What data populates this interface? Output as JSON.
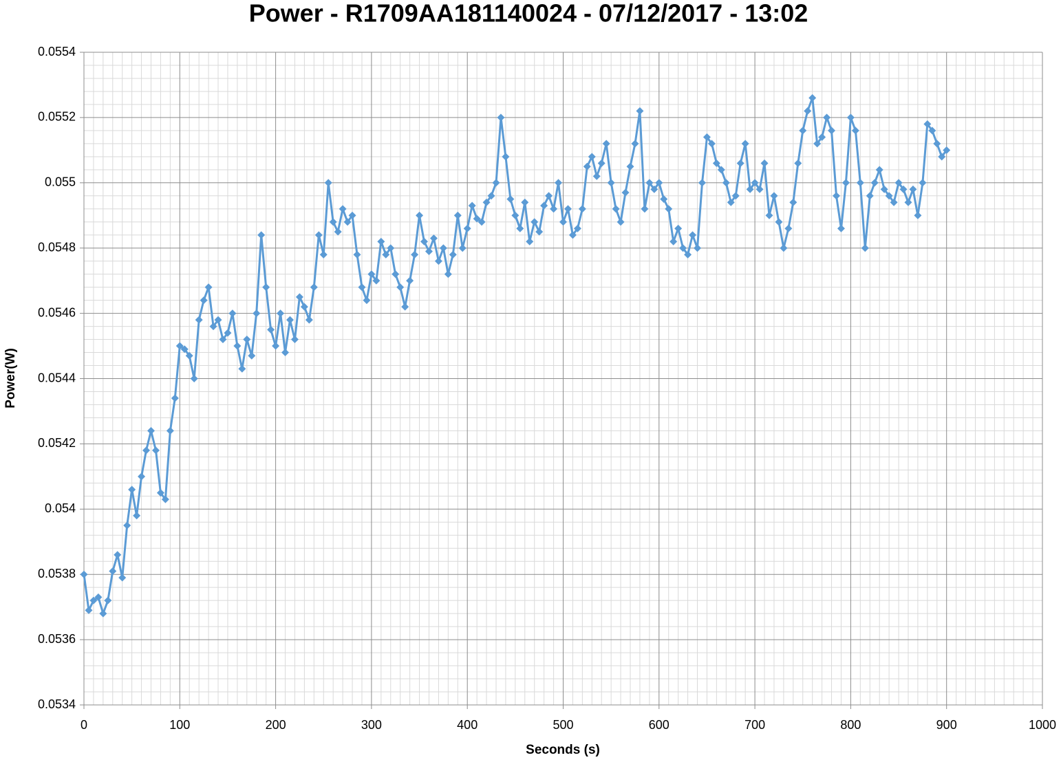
{
  "chart_data": {
    "type": "line",
    "title": "Power - R1709AA181140024 - 07/12/2017 - 13:02",
    "x_label": "Seconds (s)",
    "y_label": "Power(W)",
    "xlim": [
      0,
      1000
    ],
    "xticks": [
      0,
      100,
      200,
      300,
      400,
      500,
      600,
      700,
      800,
      900,
      1000
    ],
    "ylim": [
      0.0534,
      0.0554
    ],
    "yticks": [
      0.0534,
      0.0536,
      0.0538,
      0.054,
      0.0542,
      0.0544,
      0.0546,
      0.0548,
      0.055,
      0.0552,
      0.0554
    ],
    "grid": true,
    "x_minor_divisions": 10,
    "y_minor_divisions": 5,
    "marker": "diamond",
    "series": [
      {
        "name": "Power",
        "color": "#5b9bd5",
        "x": [
          0,
          5,
          10,
          15,
          20,
          25,
          30,
          35,
          40,
          45,
          50,
          55,
          60,
          65,
          70,
          75,
          80,
          85,
          90,
          95,
          100,
          105,
          110,
          115,
          120,
          125,
          130,
          135,
          140,
          145,
          150,
          155,
          160,
          165,
          170,
          175,
          180,
          185,
          190,
          195,
          200,
          205,
          210,
          215,
          220,
          225,
          230,
          235,
          240,
          245,
          250,
          255,
          260,
          265,
          270,
          275,
          280,
          285,
          290,
          295,
          300,
          305,
          310,
          315,
          320,
          325,
          330,
          335,
          340,
          345,
          350,
          355,
          360,
          365,
          370,
          375,
          380,
          385,
          390,
          395,
          400,
          405,
          410,
          415,
          420,
          425,
          430,
          435,
          440,
          445,
          450,
          455,
          460,
          465,
          470,
          475,
          480,
          485,
          490,
          495,
          500,
          505,
          510,
          515,
          520,
          525,
          530,
          535,
          540,
          545,
          550,
          555,
          560,
          565,
          570,
          575,
          580,
          585,
          590,
          595,
          600,
          605,
          610,
          615,
          620,
          625,
          630,
          635,
          640,
          645,
          650,
          655,
          660,
          665,
          670,
          675,
          680,
          685,
          690,
          695,
          700,
          705,
          710,
          715,
          720,
          725,
          730,
          735,
          740,
          745,
          750,
          755,
          760,
          765,
          770,
          775,
          780,
          785,
          790,
          795,
          800,
          805,
          810,
          815,
          820,
          825,
          830,
          835,
          840,
          845,
          850,
          855,
          860,
          865,
          870,
          875,
          880,
          885,
          890,
          895,
          900
        ],
        "values": [
          0.0538,
          0.05369,
          0.05372,
          0.05373,
          0.05368,
          0.05372,
          0.05381,
          0.05386,
          0.05379,
          0.05395,
          0.05406,
          0.05398,
          0.0541,
          0.05418,
          0.05424,
          0.05418,
          0.05405,
          0.05403,
          0.05424,
          0.05434,
          0.0545,
          0.05449,
          0.05447,
          0.0544,
          0.05458,
          0.05464,
          0.05468,
          0.05456,
          0.05458,
          0.05452,
          0.05454,
          0.0546,
          0.0545,
          0.05443,
          0.05452,
          0.05447,
          0.0546,
          0.05484,
          0.05468,
          0.05455,
          0.0545,
          0.0546,
          0.05448,
          0.05458,
          0.05452,
          0.05465,
          0.05462,
          0.05458,
          0.05468,
          0.05484,
          0.05478,
          0.055,
          0.05488,
          0.05485,
          0.05492,
          0.05488,
          0.0549,
          0.05478,
          0.05468,
          0.05464,
          0.05472,
          0.0547,
          0.05482,
          0.05478,
          0.0548,
          0.05472,
          0.05468,
          0.05462,
          0.0547,
          0.05478,
          0.0549,
          0.05482,
          0.05479,
          0.05483,
          0.05476,
          0.0548,
          0.05472,
          0.05478,
          0.0549,
          0.0548,
          0.05486,
          0.05493,
          0.05489,
          0.05488,
          0.05494,
          0.05496,
          0.055,
          0.0552,
          0.05508,
          0.05495,
          0.0549,
          0.05486,
          0.05494,
          0.05482,
          0.05488,
          0.05485,
          0.05493,
          0.05496,
          0.05492,
          0.055,
          0.05488,
          0.05492,
          0.05484,
          0.05486,
          0.05492,
          0.05505,
          0.05508,
          0.05502,
          0.05506,
          0.05512,
          0.055,
          0.05492,
          0.05488,
          0.05497,
          0.05505,
          0.05512,
          0.05522,
          0.05492,
          0.055,
          0.05498,
          0.055,
          0.05495,
          0.05492,
          0.05482,
          0.05486,
          0.0548,
          0.05478,
          0.05484,
          0.0548,
          0.055,
          0.05514,
          0.05512,
          0.05506,
          0.05504,
          0.055,
          0.05494,
          0.05496,
          0.05506,
          0.05512,
          0.05498,
          0.055,
          0.05498,
          0.05506,
          0.0549,
          0.05496,
          0.05488,
          0.0548,
          0.05486,
          0.05494,
          0.05506,
          0.05516,
          0.05522,
          0.05526,
          0.05512,
          0.05514,
          0.0552,
          0.05516,
          0.05496,
          0.05486,
          0.055,
          0.0552,
          0.05516,
          0.055,
          0.0548,
          0.05496,
          0.055,
          0.05504,
          0.05498,
          0.05496,
          0.05494,
          0.055,
          0.05498,
          0.05494,
          0.05498,
          0.0549,
          0.055,
          0.05518,
          0.05516,
          0.05512,
          0.05508,
          0.0551
        ]
      }
    ]
  }
}
